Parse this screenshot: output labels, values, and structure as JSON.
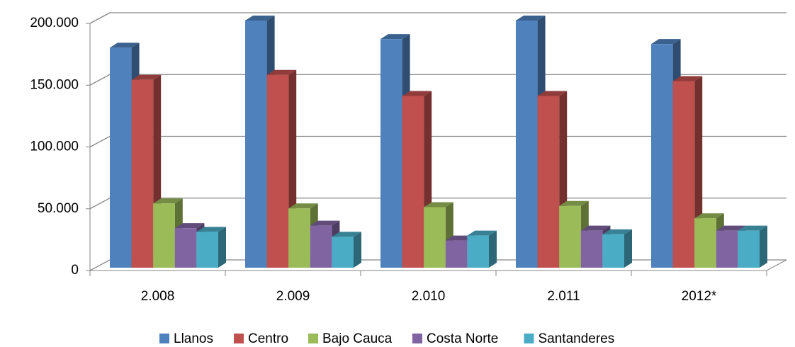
{
  "chart_data": {
    "type": "bar3d",
    "categories": [
      "2.008",
      "2.009",
      "2.010",
      "2.011",
      "2012*"
    ],
    "series": [
      {
        "name": "Llanos",
        "color": "#4f81bd",
        "values": [
          178000,
          200000,
          185000,
          200000,
          181000
        ]
      },
      {
        "name": "Centro",
        "color": "#c0504d",
        "values": [
          152000,
          156000,
          139000,
          139000,
          151000
        ]
      },
      {
        "name": "Bajo Cauca",
        "color": "#9bbb59",
        "values": [
          52000,
          48000,
          49000,
          50000,
          40000
        ]
      },
      {
        "name": "Costa Norte",
        "color": "#8064a2",
        "values": [
          32000,
          34000,
          22000,
          30000,
          30000
        ]
      },
      {
        "name": "Santanderes",
        "color": "#4bacc6",
        "values": [
          29000,
          25000,
          26000,
          27000,
          30000
        ]
      }
    ],
    "ylim": [
      0,
      200000
    ],
    "yticks": [
      {
        "value": 0,
        "label": "0"
      },
      {
        "value": 50000,
        "label": "50.000"
      },
      {
        "value": 100000,
        "label": "100.000"
      },
      {
        "value": 150000,
        "label": "150.000"
      },
      {
        "value": 200000,
        "label": "200.000"
      }
    ],
    "grid": true,
    "legend": "bottom"
  }
}
